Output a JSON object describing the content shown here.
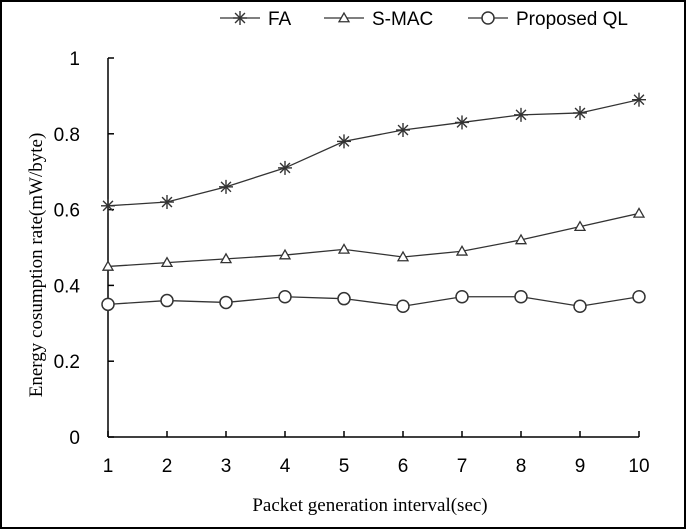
{
  "chart_data": {
    "type": "line",
    "xlabel": "Packet generation interval(sec)",
    "ylabel": "Energy cosumption rate(mW/byte)",
    "x": [
      1,
      2,
      3,
      4,
      5,
      6,
      7,
      8,
      9,
      10
    ],
    "x_tick_labels": [
      "1",
      "2",
      "3",
      "4",
      "5",
      "6",
      "7",
      "8",
      "9",
      "10"
    ],
    "ylim": [
      0,
      1
    ],
    "y_ticks": [
      0,
      0.2,
      0.4,
      0.6,
      0.8,
      1
    ],
    "y_tick_labels": [
      "0",
      "0.2",
      "0.4",
      "0.6",
      "0.8",
      "1"
    ],
    "grid": false,
    "legend_position": "top",
    "series": [
      {
        "name": "FA",
        "marker": "asterisk",
        "color": "#333333",
        "values": [
          0.61,
          0.62,
          0.66,
          0.71,
          0.78,
          0.81,
          0.83,
          0.85,
          0.855,
          0.89
        ]
      },
      {
        "name": "S-MAC",
        "marker": "triangle",
        "color": "#333333",
        "values": [
          0.45,
          0.46,
          0.47,
          0.48,
          0.495,
          0.475,
          0.49,
          0.52,
          0.555,
          0.59
        ]
      },
      {
        "name": "Proposed QL",
        "marker": "circle",
        "color": "#333333",
        "values": [
          0.35,
          0.36,
          0.355,
          0.37,
          0.365,
          0.345,
          0.37,
          0.37,
          0.345,
          0.37
        ]
      }
    ]
  }
}
